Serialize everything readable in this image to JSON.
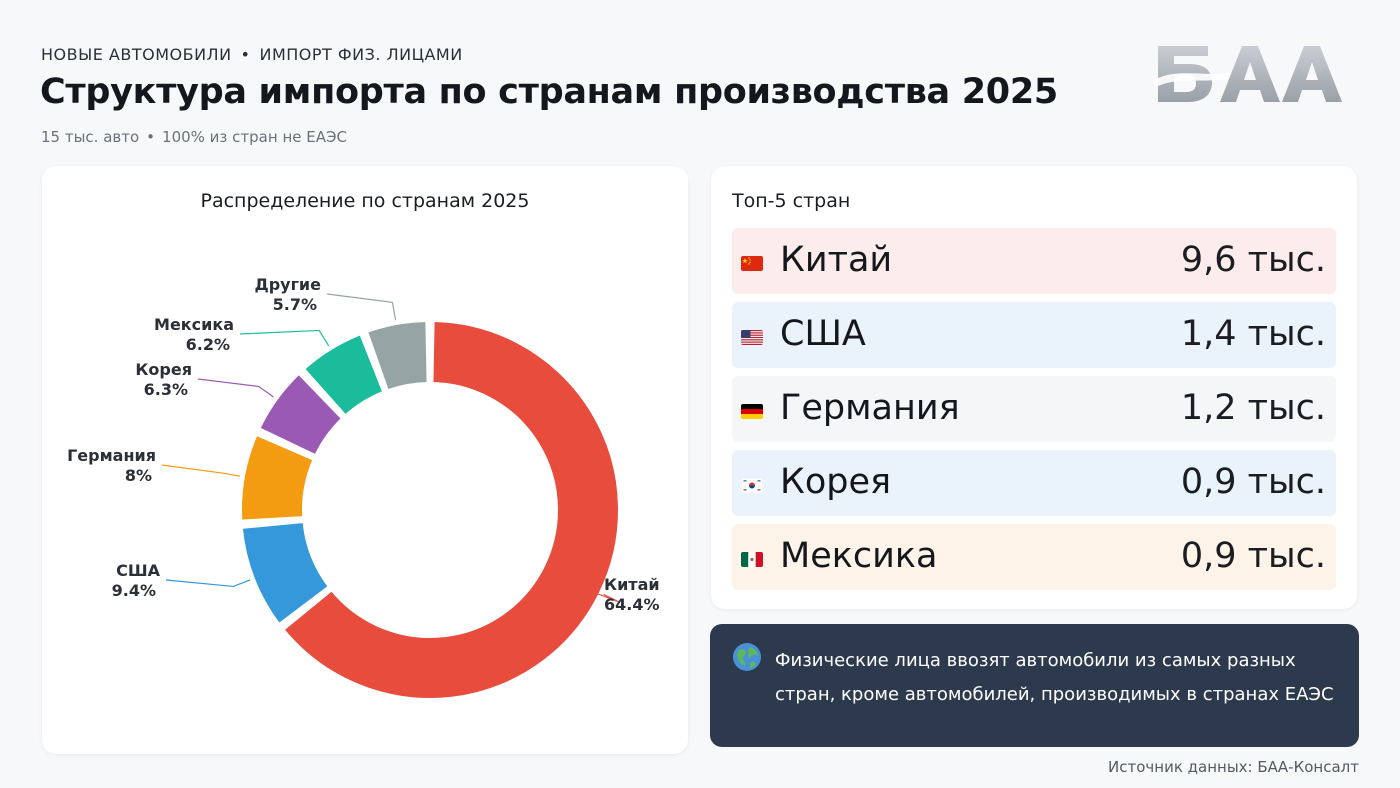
{
  "header": {
    "kicker_left": "НОВЫЕ АВТОМОБИЛИ",
    "kicker_sep": "•",
    "kicker_right": "ИМПОРТ ФИЗ. ЛИЦАМИ",
    "title": "Структура импорта по странам производства 2025",
    "subtitle_left": "15 тыс. авто",
    "subtitle_sep": "•",
    "subtitle_right": "100% из стран не ЕАЭС",
    "logo_text": "БАА"
  },
  "chart_data": {
    "type": "pie",
    "title": "Распределение по странам 2025",
    "donut": true,
    "categories": [
      "Китай",
      "США",
      "Германия",
      "Корея",
      "Мексика",
      "Другие"
    ],
    "values": [
      64.4,
      9.4,
      8,
      6.3,
      6.2,
      5.7
    ],
    "labels": [
      "64.4%",
      "9.4%",
      "8%",
      "6.3%",
      "6.2%",
      "5.7%"
    ],
    "colors": [
      "#e74c3c",
      "#3498db",
      "#f39c12",
      "#9b59b6",
      "#1abc9c",
      "#95a5a6"
    ]
  },
  "top5": {
    "title": "Топ-5 стран",
    "rows": [
      {
        "flag": "china-flag",
        "name": "Китай",
        "value": "9,6 тыс.",
        "bg": "#fdecec"
      },
      {
        "flag": "usa-flag",
        "name": "США",
        "value": "1,4 тыс.",
        "bg": "#eaf3fc"
      },
      {
        "flag": "germany-flag",
        "name": "Германия",
        "value": "1,2 тыс.",
        "bg": "#f4f6f8"
      },
      {
        "flag": "korea-flag",
        "name": "Корея",
        "value": "0,9 тыс.",
        "bg": "#eaf3fc"
      },
      {
        "flag": "mexico-flag",
        "name": "Мексика",
        "value": "0,9 тыс.",
        "bg": "#fdf3e8"
      }
    ]
  },
  "note": {
    "icon": "globe-icon",
    "text": "Физические лица ввозят автомобили из самых разных стран, кроме автомобилей, производимых в странах ЕАЭС"
  },
  "footer": {
    "source": "Источник данных: БАА-Консалт"
  }
}
